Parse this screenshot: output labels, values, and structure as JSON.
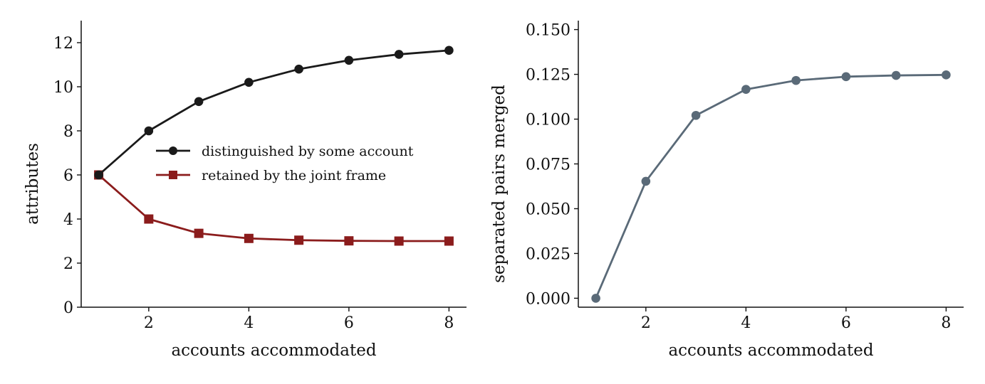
{
  "chart_data": [
    {
      "type": "line",
      "xlabel": "accounts accommodated",
      "ylabel": "attributes",
      "xlim": [
        0.65,
        8.35
      ],
      "ylim": [
        0,
        13
      ],
      "xticks": [
        2,
        4,
        6,
        8
      ],
      "yticks": [
        0,
        2,
        4,
        6,
        8,
        10,
        12
      ],
      "grid": false,
      "legend": "center-right",
      "x": [
        1,
        2,
        3,
        4,
        5,
        6,
        7,
        8
      ],
      "series": [
        {
          "name": "distinguished by some account",
          "color": "#1a1a1a",
          "marker": "circle",
          "values": [
            6.0,
            8.0,
            9.33,
            10.2,
            10.8,
            11.2,
            11.47,
            11.65
          ]
        },
        {
          "name": "retained by the joint frame",
          "color": "#8b1c1c",
          "marker": "square",
          "values": [
            6.0,
            4.0,
            3.35,
            3.12,
            3.04,
            3.01,
            3.0,
            3.0
          ]
        }
      ]
    },
    {
      "type": "line",
      "xlabel": "accounts accommodated",
      "ylabel": "separated pairs merged",
      "xlim": [
        0.65,
        8.35
      ],
      "ylim": [
        -0.005,
        0.155
      ],
      "xticks": [
        2,
        4,
        6,
        8
      ],
      "yticks": [
        0.0,
        0.025,
        0.05,
        0.075,
        0.1,
        0.125,
        0.15
      ],
      "ytick_labels": [
        "0.000",
        "0.025",
        "0.050",
        "0.075",
        "0.100",
        "0.125",
        "0.150"
      ],
      "grid": false,
      "x": [
        1,
        2,
        3,
        4,
        5,
        6,
        7,
        8
      ],
      "series": [
        {
          "color": "#5a6a78",
          "marker": "circle",
          "values": [
            0.0,
            0.0653,
            0.1021,
            0.1166,
            0.1216,
            0.1237,
            0.1244,
            0.1247
          ]
        }
      ]
    }
  ]
}
